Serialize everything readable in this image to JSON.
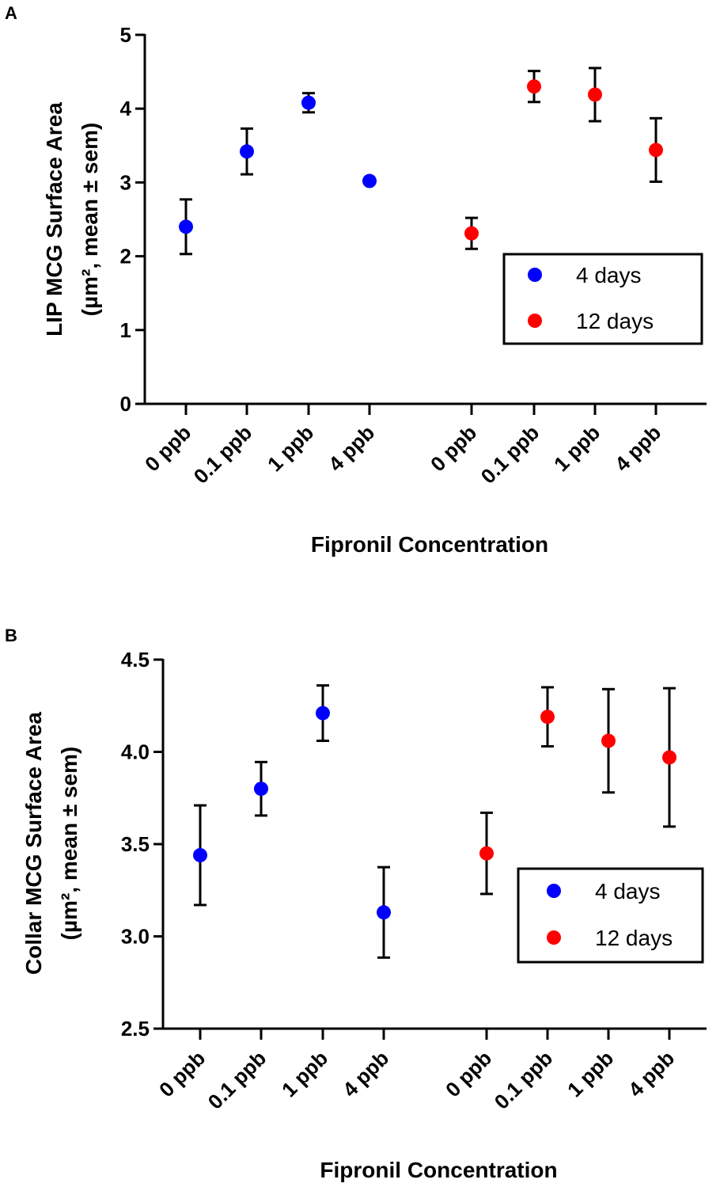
{
  "chart_data": [
    {
      "type": "scatter",
      "panel_label": "A",
      "ylabel_line1": "LIP MCG Surface Area",
      "ylabel_line2": "(µm², mean ± sem)",
      "xlabel": "Fipronil Concentration",
      "ylim": [
        0,
        5
      ],
      "yticks": [
        0,
        1,
        2,
        3,
        4,
        5
      ],
      "ytick_labels": [
        "0",
        "1",
        "2",
        "3",
        "4",
        "5"
      ],
      "categories": [
        "0 ppb",
        "0.1 ppb",
        "1 ppb",
        "4 ppb",
        "0 ppb",
        "0.1 ppb",
        "1 ppb",
        "4 ppb"
      ],
      "legend": {
        "position": "right",
        "entries": [
          "4 days",
          "12 days"
        ]
      },
      "series": [
        {
          "name": "4 days",
          "color": "#0000FF",
          "values": [
            2.4,
            3.42,
            4.08,
            3.02
          ],
          "errors": [
            0.37,
            0.31,
            0.13,
            0
          ]
        },
        {
          "name": "12 days",
          "color": "#FF0000",
          "values": [
            2.31,
            4.3,
            4.19,
            3.44
          ],
          "errors": [
            0.21,
            0.21,
            0.36,
            0.43
          ]
        }
      ]
    },
    {
      "type": "scatter",
      "panel_label": "B",
      "ylabel_line1": "Collar MCG Surface Area",
      "ylabel_line2": "(µm², mean ± sem)",
      "xlabel": "Fipronil Concentration",
      "ylim": [
        2.5,
        4.5
      ],
      "yticks": [
        2.5,
        3.0,
        3.5,
        4.0,
        4.5
      ],
      "ytick_labels": [
        "2.5",
        "3.0",
        "3.5",
        "4.0",
        "4.5"
      ],
      "categories": [
        "0 ppb",
        "0.1 ppb",
        "1 ppb",
        "4 ppb",
        "0 ppb",
        "0.1 ppb",
        "1 ppb",
        "4 ppb"
      ],
      "legend": {
        "position": "lower-right",
        "entries": [
          "4 days",
          "12 days"
        ]
      },
      "series": [
        {
          "name": "4 days",
          "color": "#0000FF",
          "values": [
            3.44,
            3.8,
            4.21,
            3.13
          ],
          "errors": [
            0.27,
            0.145,
            0.15,
            0.245
          ]
        },
        {
          "name": "12 days",
          "color": "#FF0000",
          "values": [
            3.45,
            4.19,
            4.06,
            3.97
          ],
          "errors": [
            0.22,
            0.16,
            0.28,
            0.375
          ]
        }
      ]
    }
  ]
}
